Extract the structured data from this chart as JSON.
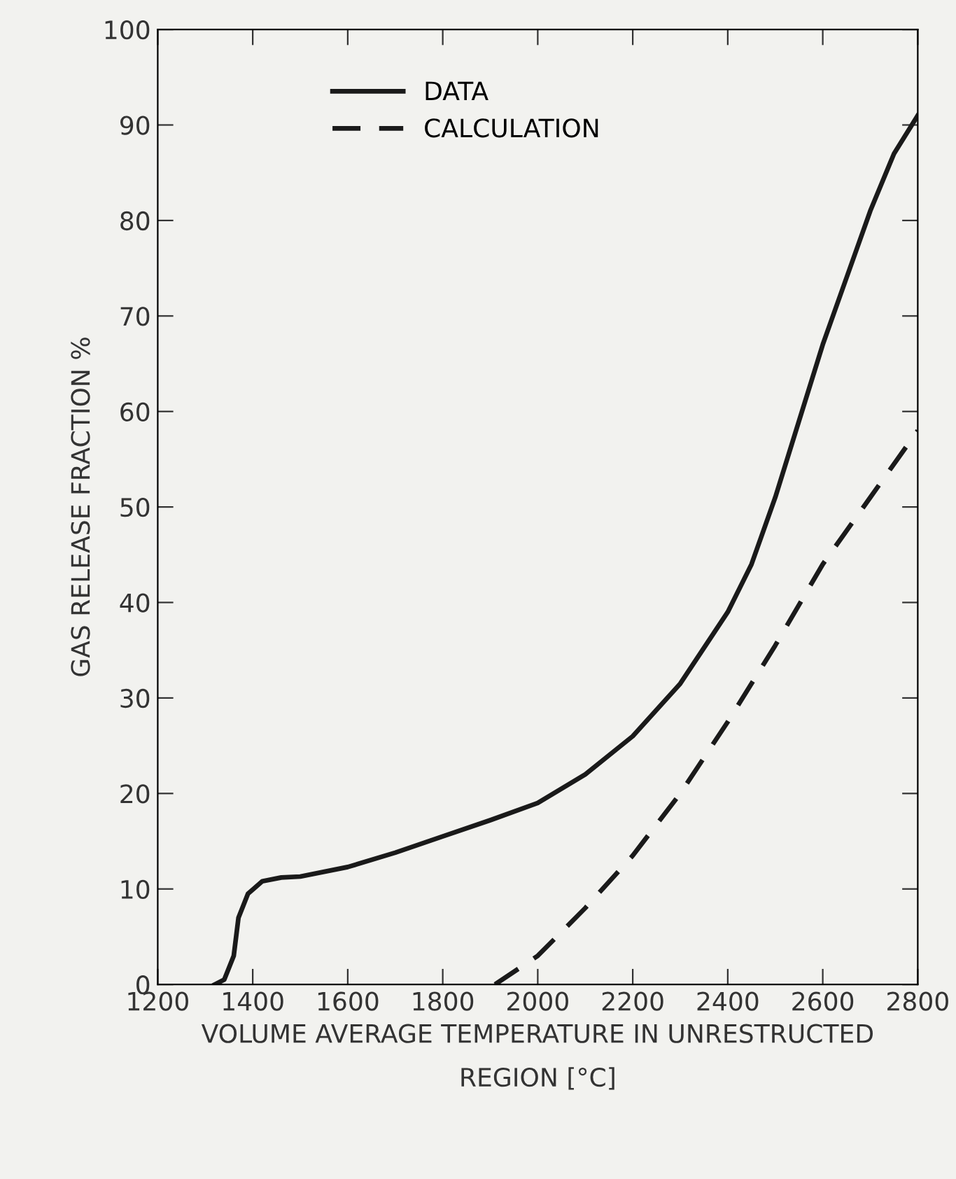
{
  "chart_data": {
    "type": "line",
    "xlabel": "VOLUME AVERAGE TEMPERATURE IN UNRESTRUCTED\nREGION [°C]",
    "ylabel": "GAS RELEASE FRACTION %",
    "xlim": [
      1200,
      2800
    ],
    "xticks": [
      1200,
      1400,
      1600,
      1800,
      2000,
      2200,
      2400,
      2600,
      2800
    ],
    "ylim": [
      0,
      100
    ],
    "yticks": [
      0,
      10,
      20,
      30,
      40,
      50,
      60,
      70,
      80,
      90,
      100
    ],
    "grid": false,
    "legend": "top left",
    "marker": "none",
    "series": [
      {
        "name": "DATA",
        "color": "#1a1a1a",
        "line_style": "solid",
        "x": [
          1320,
          1340,
          1360,
          1370,
          1390,
          1420,
          1460,
          1500,
          1600,
          1700,
          1800,
          1900,
          2000,
          2100,
          2200,
          2300,
          2400,
          2450,
          2500,
          2550,
          2600,
          2650,
          2700,
          2750,
          2800
        ],
        "values": [
          0,
          0.5,
          3,
          7,
          9.5,
          10.8,
          11.2,
          11.3,
          12.3,
          13.8,
          15.5,
          17.2,
          19,
          22,
          26,
          31.5,
          39,
          44,
          51,
          59,
          67,
          74,
          81,
          87,
          91
        ]
      },
      {
        "name": "CALCULATION",
        "color": "#1a1a1a",
        "line_style": "dashed",
        "x": [
          1910,
          2000,
          2100,
          2200,
          2300,
          2400,
          2500,
          2600,
          2700,
          2800
        ],
        "values": [
          0,
          3,
          8,
          13.5,
          20,
          27.5,
          35.5,
          44,
          51,
          58
        ]
      }
    ]
  }
}
